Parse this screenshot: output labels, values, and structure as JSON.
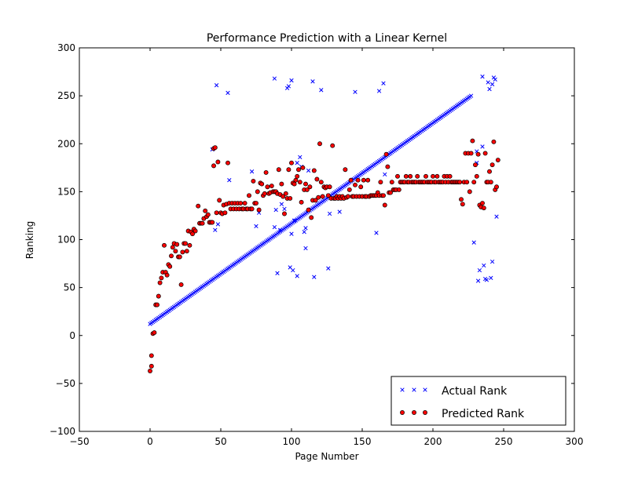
{
  "chart_data": {
    "type": "scatter",
    "title": "Performance Prediction with a Linear Kernel",
    "xlabel": "Page Number",
    "ylabel": "Ranking",
    "xlim": [
      -50,
      300
    ],
    "ylim": [
      -100,
      300
    ],
    "xticks": [
      -50,
      0,
      50,
      100,
      150,
      200,
      250,
      300
    ],
    "yticks": [
      -100,
      -50,
      0,
      50,
      100,
      150,
      200,
      250,
      300
    ],
    "grid": false,
    "legend_position": "lower-right",
    "series": [
      {
        "name": "Actual Rank",
        "marker": "x",
        "color": "#0000ff",
        "outliers": [
          [
            44,
            194
          ],
          [
            46,
            110
          ],
          [
            47,
            261
          ],
          [
            48,
            116
          ],
          [
            55,
            253
          ],
          [
            56,
            162
          ],
          [
            72,
            171
          ],
          [
            75,
            114
          ],
          [
            77,
            128
          ],
          [
            88,
            268
          ],
          [
            88,
            113
          ],
          [
            89,
            131
          ],
          [
            90,
            65
          ],
          [
            92,
            110
          ],
          [
            93,
            137
          ],
          [
            95,
            132
          ],
          [
            97,
            258
          ],
          [
            98,
            260
          ],
          [
            99,
            71
          ],
          [
            100,
            266
          ],
          [
            100,
            106
          ],
          [
            101,
            68
          ],
          [
            102,
            120
          ],
          [
            104,
            62
          ],
          [
            104,
            180
          ],
          [
            106,
            186
          ],
          [
            107,
            176
          ],
          [
            109,
            108
          ],
          [
            110,
            112
          ],
          [
            110,
            91
          ],
          [
            112,
            172
          ],
          [
            115,
            265
          ],
          [
            116,
            61
          ],
          [
            121,
            256
          ],
          [
            126,
            70
          ],
          [
            127,
            127
          ],
          [
            134,
            129
          ],
          [
            145,
            254
          ],
          [
            160,
            107
          ],
          [
            162,
            255
          ],
          [
            165,
            263
          ],
          [
            166,
            168
          ],
          [
            229,
            97
          ],
          [
            231,
            192
          ],
          [
            231,
            180
          ],
          [
            232,
            57
          ],
          [
            233,
            68
          ],
          [
            235,
            270
          ],
          [
            235,
            197
          ],
          [
            236,
            73
          ],
          [
            237,
            59
          ],
          [
            238,
            58
          ],
          [
            239,
            264
          ],
          [
            240,
            257
          ],
          [
            241,
            60
          ],
          [
            242,
            77
          ],
          [
            242,
            262
          ],
          [
            243,
            269
          ],
          [
            244,
            267
          ],
          [
            245,
            124
          ]
        ]
      },
      {
        "name": "Predicted Rank",
        "marker": "o",
        "color": "#ff0000",
        "points": [
          [
            0,
            -37
          ],
          [
            1,
            -32
          ],
          [
            1,
            -21
          ],
          [
            2,
            2
          ],
          [
            3,
            3
          ],
          [
            4,
            32
          ],
          [
            5,
            32
          ],
          [
            6,
            41
          ],
          [
            7,
            55
          ],
          [
            8,
            60
          ],
          [
            9,
            66
          ],
          [
            10,
            94
          ],
          [
            11,
            66
          ],
          [
            12,
            63
          ],
          [
            13,
            74
          ],
          [
            14,
            72
          ],
          [
            15,
            83
          ],
          [
            16,
            92
          ],
          [
            17,
            96
          ],
          [
            18,
            88
          ],
          [
            19,
            95
          ],
          [
            20,
            82
          ],
          [
            21,
            82
          ],
          [
            22,
            53
          ],
          [
            23,
            87
          ],
          [
            24,
            96
          ],
          [
            25,
            96
          ],
          [
            26,
            88
          ],
          [
            27,
            109
          ],
          [
            28,
            94
          ],
          [
            29,
            108
          ],
          [
            30,
            106
          ],
          [
            31,
            111
          ],
          [
            32,
            109
          ],
          [
            34,
            135
          ],
          [
            35,
            117
          ],
          [
            36,
            117
          ],
          [
            37,
            117
          ],
          [
            38,
            122
          ],
          [
            39,
            130
          ],
          [
            40,
            124
          ],
          [
            41,
            126
          ],
          [
            42,
            118
          ],
          [
            43,
            118
          ],
          [
            44,
            118
          ],
          [
            45,
            177
          ],
          [
            45,
            195
          ],
          [
            46,
            196
          ],
          [
            47,
            128
          ],
          [
            48,
            181
          ],
          [
            49,
            141
          ],
          [
            50,
            128
          ],
          [
            51,
            127
          ],
          [
            52,
            136
          ],
          [
            53,
            128
          ],
          [
            54,
            137
          ],
          [
            55,
            180
          ],
          [
            56,
            138
          ],
          [
            57,
            132
          ],
          [
            58,
            138
          ],
          [
            59,
            132
          ],
          [
            60,
            138
          ],
          [
            61,
            132
          ],
          [
            62,
            138
          ],
          [
            63,
            132
          ],
          [
            64,
            138
          ],
          [
            65,
            132
          ],
          [
            66,
            132
          ],
          [
            67,
            138
          ],
          [
            68,
            132
          ],
          [
            69,
            132
          ],
          [
            70,
            146
          ],
          [
            71,
            132
          ],
          [
            72,
            132
          ],
          [
            73,
            161
          ],
          [
            74,
            138
          ],
          [
            75,
            138
          ],
          [
            76,
            150
          ],
          [
            77,
            131
          ],
          [
            78,
            159
          ],
          [
            79,
            158
          ],
          [
            80,
            146
          ],
          [
            81,
            148
          ],
          [
            82,
            170
          ],
          [
            83,
            155
          ],
          [
            84,
            148
          ],
          [
            85,
            149
          ],
          [
            86,
            156
          ],
          [
            87,
            150
          ],
          [
            88,
            150
          ],
          [
            89,
            150
          ],
          [
            90,
            148
          ],
          [
            91,
            173
          ],
          [
            92,
            147
          ],
          [
            93,
            158
          ],
          [
            94,
            145
          ],
          [
            95,
            127
          ],
          [
            96,
            148
          ],
          [
            97,
            143
          ],
          [
            98,
            173
          ],
          [
            99,
            143
          ],
          [
            100,
            180
          ],
          [
            101,
            159
          ],
          [
            102,
            158
          ],
          [
            103,
            162
          ],
          [
            104,
            166
          ],
          [
            105,
            173
          ],
          [
            106,
            160
          ],
          [
            107,
            139
          ],
          [
            108,
            175
          ],
          [
            109,
            152
          ],
          [
            110,
            158
          ],
          [
            111,
            152
          ],
          [
            112,
            131
          ],
          [
            113,
            155
          ],
          [
            114,
            123
          ],
          [
            115,
            141
          ],
          [
            116,
            172
          ],
          [
            117,
            141
          ],
          [
            118,
            163
          ],
          [
            119,
            144
          ],
          [
            120,
            200
          ],
          [
            121,
            160
          ],
          [
            122,
            145
          ],
          [
            123,
            155
          ],
          [
            124,
            154
          ],
          [
            125,
            155
          ],
          [
            126,
            146
          ],
          [
            127,
            155
          ],
          [
            128,
            143
          ],
          [
            129,
            198
          ],
          [
            130,
            143
          ],
          [
            131,
            143
          ],
          [
            132,
            145
          ],
          [
            133,
            143
          ],
          [
            134,
            145
          ],
          [
            135,
            143
          ],
          [
            136,
            145
          ],
          [
            137,
            143
          ],
          [
            138,
            173
          ],
          [
            139,
            144
          ],
          [
            140,
            145
          ],
          [
            141,
            152
          ],
          [
            142,
            162
          ],
          [
            143,
            145
          ],
          [
            144,
            145
          ],
          [
            145,
            157
          ],
          [
            146,
            145
          ],
          [
            147,
            162
          ],
          [
            148,
            145
          ],
          [
            149,
            155
          ],
          [
            150,
            145
          ],
          [
            151,
            162
          ],
          [
            152,
            145
          ],
          [
            153,
            145
          ],
          [
            154,
            162
          ],
          [
            155,
            145
          ],
          [
            156,
            146
          ],
          [
            157,
            146
          ],
          [
            158,
            146
          ],
          [
            159,
            146
          ],
          [
            160,
            146
          ],
          [
            161,
            149
          ],
          [
            162,
            146
          ],
          [
            163,
            160
          ],
          [
            164,
            146
          ],
          [
            165,
            146
          ],
          [
            166,
            136
          ],
          [
            167,
            189
          ],
          [
            168,
            176
          ],
          [
            169,
            149
          ],
          [
            170,
            149
          ],
          [
            171,
            160
          ],
          [
            172,
            152
          ],
          [
            173,
            152
          ],
          [
            174,
            152
          ],
          [
            175,
            166
          ],
          [
            176,
            152
          ],
          [
            177,
            160
          ],
          [
            178,
            160
          ],
          [
            179,
            160
          ],
          [
            180,
            160
          ],
          [
            181,
            166
          ],
          [
            182,
            160
          ],
          [
            183,
            160
          ],
          [
            184,
            166
          ],
          [
            185,
            160
          ],
          [
            186,
            160
          ],
          [
            187,
            160
          ],
          [
            188,
            160
          ],
          [
            189,
            166
          ],
          [
            190,
            160
          ],
          [
            191,
            160
          ],
          [
            192,
            160
          ],
          [
            193,
            160
          ],
          [
            194,
            160
          ],
          [
            195,
            166
          ],
          [
            196,
            160
          ],
          [
            197,
            160
          ],
          [
            198,
            160
          ],
          [
            199,
            160
          ],
          [
            200,
            166
          ],
          [
            201,
            160
          ],
          [
            202,
            160
          ],
          [
            203,
            166
          ],
          [
            204,
            160
          ],
          [
            205,
            160
          ],
          [
            206,
            160
          ],
          [
            207,
            160
          ],
          [
            208,
            166
          ],
          [
            209,
            160
          ],
          [
            210,
            166
          ],
          [
            211,
            160
          ],
          [
            212,
            166
          ],
          [
            213,
            160
          ],
          [
            214,
            160
          ],
          [
            215,
            160
          ],
          [
            216,
            160
          ],
          [
            217,
            160
          ],
          [
            218,
            160
          ],
          [
            219,
            160
          ],
          [
            220,
            142
          ],
          [
            221,
            137
          ],
          [
            222,
            160
          ],
          [
            223,
            190
          ],
          [
            224,
            160
          ],
          [
            225,
            190
          ],
          [
            226,
            150
          ],
          [
            227,
            190
          ],
          [
            228,
            203
          ],
          [
            229,
            160
          ],
          [
            230,
            178
          ],
          [
            231,
            166
          ],
          [
            232,
            189
          ],
          [
            233,
            136
          ],
          [
            234,
            134
          ],
          [
            235,
            138
          ],
          [
            236,
            133
          ],
          [
            237,
            190
          ],
          [
            238,
            160
          ],
          [
            239,
            160
          ],
          [
            240,
            171
          ],
          [
            241,
            160
          ],
          [
            242,
            178
          ],
          [
            243,
            202
          ],
          [
            244,
            152
          ],
          [
            245,
            155
          ],
          [
            246,
            183
          ]
        ]
      }
    ]
  }
}
